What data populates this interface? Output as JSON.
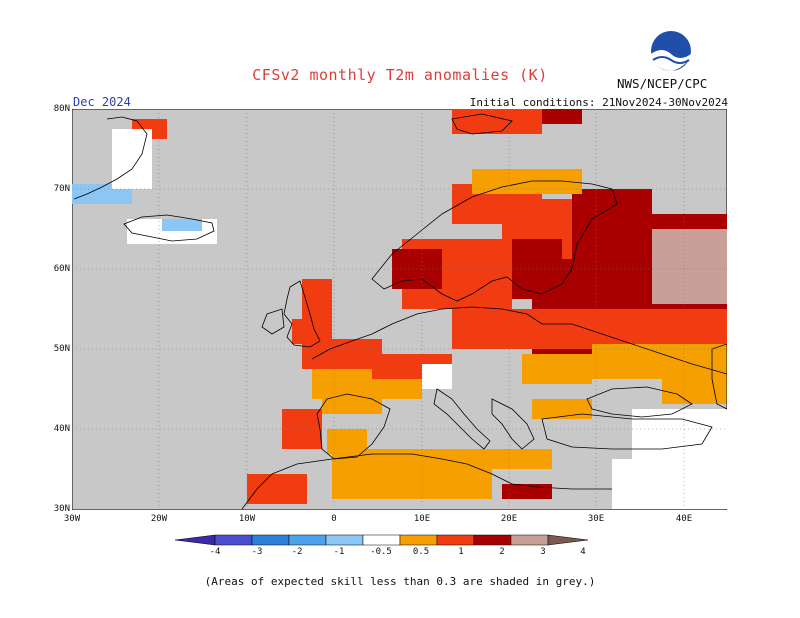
{
  "title": "CFSv2 monthly T2m anomalies (K)",
  "month": "Dec 2024",
  "initial_conditions": "Initial conditions: 21Nov2024-30Nov2024",
  "agency": "NWS/NCEP/CPC",
  "logo_text": "NOAA",
  "footnote": "(Areas of expected skill less than 0.3 are shaded in grey.)",
  "x_ticks": [
    "30W",
    "20W",
    "10W",
    "0",
    "10E",
    "20E",
    "30E",
    "40E"
  ],
  "y_ticks": [
    "80N",
    "70N",
    "60N",
    "50N",
    "40N",
    "30N"
  ],
  "colorbar": {
    "labels": [
      "-4",
      "-3",
      "-2",
      "-1",
      "-0.5",
      "0.5",
      "1",
      "2",
      "3",
      "4"
    ],
    "colors": [
      "#3a2aa8",
      "#4a4ecf",
      "#2e7fd8",
      "#4aa3ec",
      "#8cc6f4",
      "#ffffff",
      "#f5a000",
      "#f03c10",
      "#a80000",
      "#c8a098",
      "#7a5a50"
    ]
  },
  "colors": {
    "grey": "#c8c8c8",
    "orange": "#f5a000",
    "red": "#f03c10",
    "darkred": "#a80000",
    "pink": "#c8a098",
    "lightblue": "#8cc6f4",
    "blue": "#4aa3ec",
    "white": "#ffffff"
  }
}
